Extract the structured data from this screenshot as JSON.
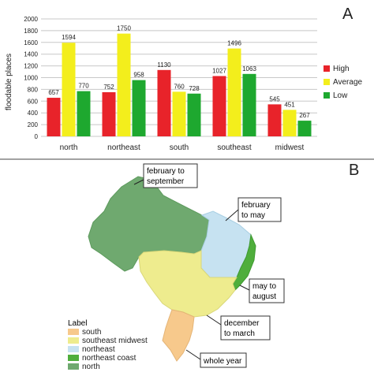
{
  "panels": {
    "a_letter": "A",
    "b_letter": "B"
  },
  "chart_data": {
    "type": "bar",
    "title": "",
    "xlabel": "",
    "ylabel": "floodable places",
    "ylim": [
      0,
      2000
    ],
    "yticks": [
      0,
      200,
      400,
      600,
      800,
      1000,
      1200,
      1400,
      1600,
      1800,
      2000
    ],
    "grid": true,
    "legend_position": "right",
    "categories": [
      "north",
      "northeast",
      "south",
      "southeast",
      "midwest"
    ],
    "series": [
      {
        "name": "High",
        "color": "#e8232a",
        "values": [
          657,
          752,
          1130,
          1027,
          545
        ]
      },
      {
        "name": "Average",
        "color": "#f3ee1c",
        "values": [
          1594,
          1750,
          760,
          1496,
          451
        ]
      },
      {
        "name": "Low",
        "color": "#1ea82f",
        "values": [
          770,
          958,
          728,
          1063,
          267
        ]
      }
    ]
  },
  "map": {
    "legend_title": "Label",
    "legend_items": [
      {
        "label": "south",
        "color": "#f7c98c"
      },
      {
        "label": "southeast midwest",
        "color": "#eeec8e"
      },
      {
        "label": "northeast",
        "color": "#c6e2f1"
      },
      {
        "label": "northeast coast",
        "color": "#4fae3c"
      },
      {
        "label": "north",
        "color": "#6fa96f"
      }
    ],
    "callouts": {
      "north": [
        "february to",
        "september"
      ],
      "northeast": [
        "february",
        "to may"
      ],
      "northeast_coast": [
        "may to",
        "august"
      ],
      "southeast_midwest": [
        "december",
        "to march"
      ],
      "south": [
        "whole year"
      ]
    }
  }
}
